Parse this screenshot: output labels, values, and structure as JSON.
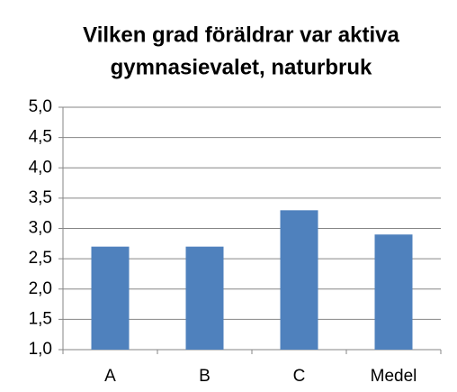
{
  "chart_data": {
    "type": "bar",
    "title": [
      "Vilken grad föräldrar var aktiva",
      "gymnasievalet, naturbruk"
    ],
    "categories": [
      "A",
      "B",
      "C",
      "Medel"
    ],
    "values": [
      2.7,
      2.7,
      3.3,
      2.9
    ],
    "color": "#4f81bd",
    "ylim": [
      1,
      5
    ],
    "yticks": [
      {
        "value": 1,
        "label": "1,0"
      },
      {
        "value": 1.5,
        "label": "1,5"
      },
      {
        "value": 2,
        "label": "2,0"
      },
      {
        "value": 2.5,
        "label": "2,5"
      },
      {
        "value": 3,
        "label": "3,0"
      },
      {
        "value": 3.5,
        "label": "3,5"
      },
      {
        "value": 4,
        "label": "4,0"
      },
      {
        "value": 4.5,
        "label": "4,5"
      },
      {
        "value": 5,
        "label": "5,0"
      }
    ],
    "grid": true
  }
}
